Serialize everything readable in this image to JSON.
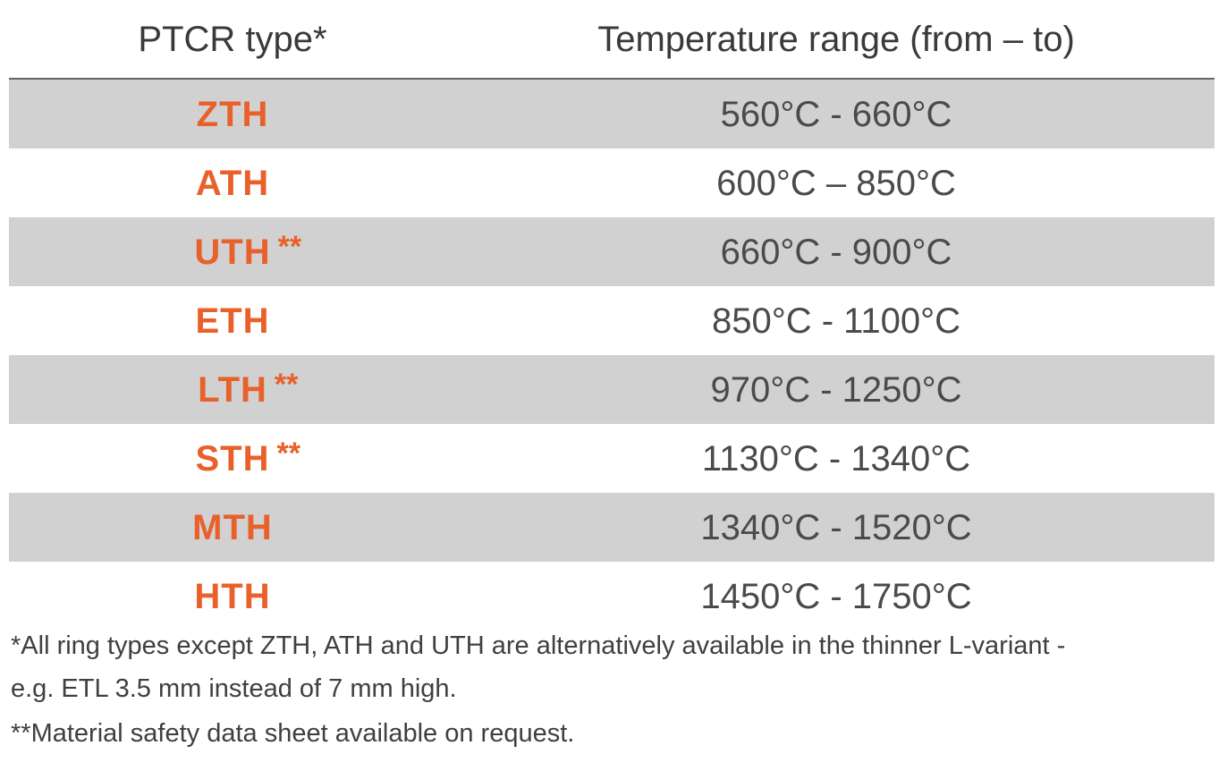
{
  "table": {
    "headers": [
      "PTCR type*",
      "Temperature range (from – to)"
    ],
    "rows": [
      {
        "type": "ZTH",
        "range": "560°C - 660°C"
      },
      {
        "type": "ATH",
        "range": "600°C – 850°C"
      },
      {
        "type": "UTH",
        "note": "**",
        "range": "660°C - 900°C"
      },
      {
        "type": "ETH",
        "range": "850°C - 1100°C"
      },
      {
        "type": "LTH",
        "note": "**",
        "range": "970°C - 1250°C"
      },
      {
        "type": "STH",
        "note": "**",
        "range": "1130°C - 1340°C"
      },
      {
        "type": "MTH",
        "range": "1340°C - 1520°C"
      },
      {
        "type": "HTH",
        "range": "1450°C - 1750°C"
      }
    ]
  },
  "footnotes": [
    {
      "lines": [
        "*All ring types except ZTH, ATH and UTH are alternatively available in the thinner L-variant -",
        "e.g. ETL 3.5 mm instead of 7 mm high."
      ]
    },
    {
      "lines": [
        "**Material safety data sheet available on request."
      ]
    }
  ]
}
